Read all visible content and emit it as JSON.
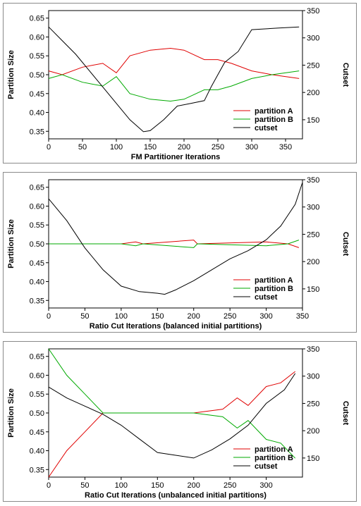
{
  "chart_data": [
    {
      "type": "line",
      "xlabel": "FM Partitioner Iterations",
      "ylabel": "Partition Size",
      "y2label": "Cutset",
      "xlim": [
        0,
        375
      ],
      "ylim": [
        0.33,
        0.67
      ],
      "y2lim": [
        115,
        350
      ],
      "xticks": [
        0,
        50,
        100,
        150,
        200,
        250,
        300,
        350
      ],
      "yticks": [
        0.35,
        0.4,
        0.45,
        0.5,
        0.55,
        0.6,
        0.65
      ],
      "y2ticks": [
        150,
        200,
        250,
        300,
        350
      ],
      "legend_position": "lower-right",
      "series": [
        {
          "name": "partition A",
          "color": "#e00000",
          "axis": "left",
          "x": [
            0,
            20,
            50,
            80,
            100,
            120,
            150,
            180,
            200,
            230,
            250,
            270,
            300,
            330,
            370
          ],
          "y": [
            0.51,
            0.5,
            0.52,
            0.53,
            0.505,
            0.55,
            0.565,
            0.57,
            0.565,
            0.54,
            0.54,
            0.53,
            0.51,
            0.5,
            0.49
          ]
        },
        {
          "name": "partition B",
          "color": "#00aa00",
          "axis": "left",
          "x": [
            0,
            20,
            50,
            80,
            100,
            120,
            150,
            180,
            200,
            230,
            250,
            270,
            300,
            330,
            370
          ],
          "y": [
            0.49,
            0.5,
            0.48,
            0.47,
            0.495,
            0.45,
            0.435,
            0.43,
            0.435,
            0.46,
            0.46,
            0.47,
            0.49,
            0.5,
            0.51
          ]
        },
        {
          "name": "cutset",
          "color": "#000000",
          "axis": "right",
          "x": [
            0,
            20,
            40,
            60,
            80,
            100,
            120,
            140,
            150,
            170,
            190,
            210,
            230,
            240,
            260,
            280,
            300,
            340,
            370
          ],
          "y": [
            320,
            295,
            270,
            240,
            210,
            180,
            150,
            128,
            130,
            150,
            175,
            180,
            185,
            210,
            255,
            275,
            315,
            318,
            320
          ]
        }
      ]
    },
    {
      "type": "line",
      "xlabel": "Ratio Cut Iterations (balanced initial partitions)",
      "ylabel": "Partition Size",
      "y2label": "Cutset",
      "xlim": [
        0,
        350
      ],
      "ylim": [
        0.33,
        0.67
      ],
      "y2lim": [
        115,
        350
      ],
      "xticks": [
        0,
        50,
        100,
        150,
        200,
        250,
        300,
        350
      ],
      "yticks": [
        0.35,
        0.4,
        0.45,
        0.5,
        0.55,
        0.6,
        0.65
      ],
      "y2ticks": [
        150,
        200,
        250,
        300,
        350
      ],
      "legend_position": "lower-right",
      "series": [
        {
          "name": "partition A",
          "color": "#e00000",
          "axis": "left",
          "x": [
            0,
            100,
            120,
            130,
            200,
            205,
            300,
            330,
            345
          ],
          "y": [
            0.5,
            0.5,
            0.505,
            0.5,
            0.51,
            0.5,
            0.505,
            0.5,
            0.49
          ]
        },
        {
          "name": "partition B",
          "color": "#00aa00",
          "axis": "left",
          "x": [
            0,
            100,
            120,
            130,
            200,
            205,
            300,
            330,
            345
          ],
          "y": [
            0.5,
            0.5,
            0.495,
            0.5,
            0.49,
            0.5,
            0.495,
            0.5,
            0.51
          ]
        },
        {
          "name": "cutset",
          "color": "#000000",
          "axis": "right",
          "x": [
            0,
            25,
            50,
            75,
            100,
            125,
            150,
            160,
            175,
            200,
            225,
            250,
            275,
            300,
            320,
            340,
            350
          ],
          "y": [
            315,
            275,
            225,
            185,
            155,
            145,
            142,
            140,
            148,
            165,
            185,
            205,
            220,
            240,
            265,
            305,
            345
          ]
        }
      ]
    },
    {
      "type": "line",
      "xlabel": "Ratio Cut Iterations (unbalanced initial partitions)",
      "ylabel": "Partition Size",
      "y2label": "Cutset",
      "xlim": [
        0,
        350
      ],
      "ylim": [
        0.33,
        0.67
      ],
      "y2lim": [
        115,
        350
      ],
      "xticks": [
        0,
        50,
        100,
        150,
        200,
        250,
        300
      ],
      "yticks": [
        0.35,
        0.4,
        0.45,
        0.5,
        0.55,
        0.6,
        0.65
      ],
      "y2ticks": [
        150,
        200,
        250,
        300,
        350
      ],
      "legend_position": "lower-right",
      "series": [
        {
          "name": "partition A",
          "color": "#e00000",
          "axis": "left",
          "x": [
            0,
            25,
            50,
            75,
            100,
            200,
            240,
            260,
            275,
            300,
            320,
            340
          ],
          "y": [
            0.33,
            0.4,
            0.45,
            0.5,
            0.5,
            0.5,
            0.51,
            0.54,
            0.52,
            0.57,
            0.58,
            0.61
          ]
        },
        {
          "name": "partition B",
          "color": "#00aa00",
          "axis": "left",
          "x": [
            0,
            25,
            50,
            75,
            100,
            200,
            240,
            260,
            275,
            300,
            320,
            340
          ],
          "y": [
            0.67,
            0.6,
            0.55,
            0.5,
            0.5,
            0.5,
            0.49,
            0.46,
            0.48,
            0.43,
            0.42,
            0.38
          ]
        },
        {
          "name": "cutset",
          "color": "#000000",
          "axis": "right",
          "x": [
            0,
            25,
            50,
            75,
            100,
            125,
            150,
            175,
            200,
            225,
            250,
            275,
            300,
            325,
            340
          ],
          "y": [
            280,
            260,
            245,
            230,
            210,
            185,
            160,
            155,
            150,
            165,
            185,
            210,
            250,
            275,
            305
          ]
        }
      ]
    }
  ]
}
